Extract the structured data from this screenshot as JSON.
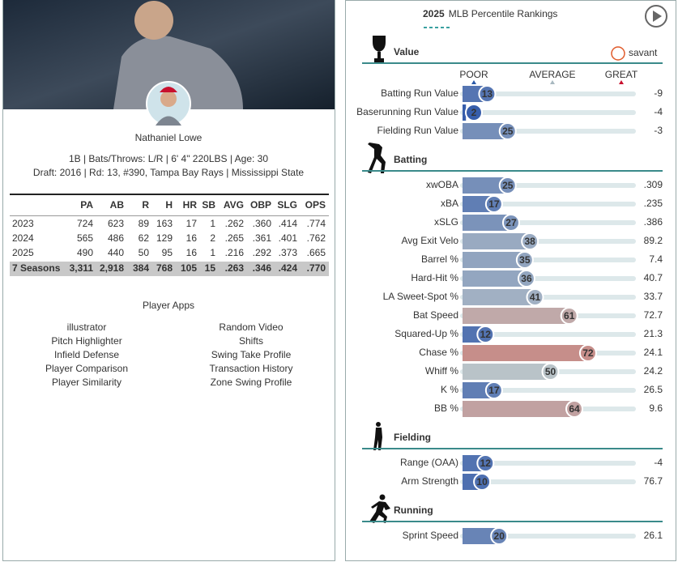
{
  "player": {
    "name": "Nathaniel Lowe",
    "bio_line": "1B | Bats/Throws: L/R | 6' 4\" 220LBS | Age: 30",
    "draft_line": "Draft: 2016 | Rd: 13, #390, Tampa Bay Rays | Mississippi State"
  },
  "stats_table": {
    "columns": [
      "PA",
      "AB",
      "R",
      "H",
      "HR",
      "SB",
      "AVG",
      "OBP",
      "SLG",
      "OPS"
    ],
    "rows": [
      [
        "2023",
        "724",
        "623",
        "89",
        "163",
        "17",
        "1",
        ".262",
        ".360",
        ".414",
        ".774"
      ],
      [
        "2024",
        "565",
        "486",
        "62",
        "129",
        "16",
        "2",
        ".265",
        ".361",
        ".401",
        ".762"
      ],
      [
        "2025",
        "490",
        "440",
        "50",
        "95",
        "16",
        "1",
        ".216",
        ".292",
        ".373",
        ".665"
      ],
      [
        "7 Seasons",
        "3,311",
        "2,918",
        "384",
        "768",
        "105",
        "15",
        ".263",
        ".346",
        ".424",
        ".770"
      ]
    ]
  },
  "player_apps": {
    "title": "Player Apps",
    "left": [
      "illustrator",
      "Pitch Highlighter",
      "Infield Defense",
      "Player Comparison",
      "Player Similarity"
    ],
    "right": [
      "Random Video",
      "Shifts",
      "Swing Take Profile",
      "Transaction History",
      "Zone Swing Profile"
    ]
  },
  "percentile_rankings": {
    "year": "2025",
    "title": "MLB Percentile Rankings",
    "logo": "savant",
    "scale": [
      "POOR",
      "AVERAGE",
      "GREAT"
    ],
    "xlim": [
      0,
      100
    ],
    "sections": [
      {
        "name": "Value",
        "rows": [
          {
            "label": "Batting Run Value",
            "percentile": 13,
            "value": "-9"
          },
          {
            "label": "Baserunning Run Value",
            "percentile": 2,
            "value": "-4"
          },
          {
            "label": "Fielding Run Value",
            "percentile": 25,
            "value": "-3"
          }
        ]
      },
      {
        "name": "Batting",
        "rows": [
          {
            "label": "xwOBA",
            "percentile": 25,
            "value": ".309"
          },
          {
            "label": "xBA",
            "percentile": 17,
            "value": ".235"
          },
          {
            "label": "xSLG",
            "percentile": 27,
            "value": ".386"
          },
          {
            "label": "Avg Exit Velo",
            "percentile": 38,
            "value": "89.2"
          },
          {
            "label": "Barrel %",
            "percentile": 35,
            "value": "7.4"
          },
          {
            "label": "Hard-Hit %",
            "percentile": 36,
            "value": "40.7"
          },
          {
            "label": "LA Sweet-Spot %",
            "percentile": 41,
            "value": "33.7"
          },
          {
            "label": "Bat Speed",
            "percentile": 61,
            "value": "72.7"
          },
          {
            "label": "Squared-Up %",
            "percentile": 12,
            "value": "21.3"
          },
          {
            "label": "Chase %",
            "percentile": 72,
            "value": "24.1"
          },
          {
            "label": "Whiff %",
            "percentile": 50,
            "value": "24.2"
          },
          {
            "label": "K %",
            "percentile": 17,
            "value": "26.5"
          },
          {
            "label": "BB %",
            "percentile": 64,
            "value": "9.6"
          }
        ]
      },
      {
        "name": "Fielding",
        "rows": [
          {
            "label": "Range (OAA)",
            "percentile": 12,
            "value": "-4"
          },
          {
            "label": "Arm Strength",
            "percentile": 10,
            "value": "76.7"
          }
        ]
      },
      {
        "name": "Running",
        "rows": [
          {
            "label": "Sprint Speed",
            "percentile": 20,
            "value": "26.1"
          }
        ]
      }
    ]
  }
}
